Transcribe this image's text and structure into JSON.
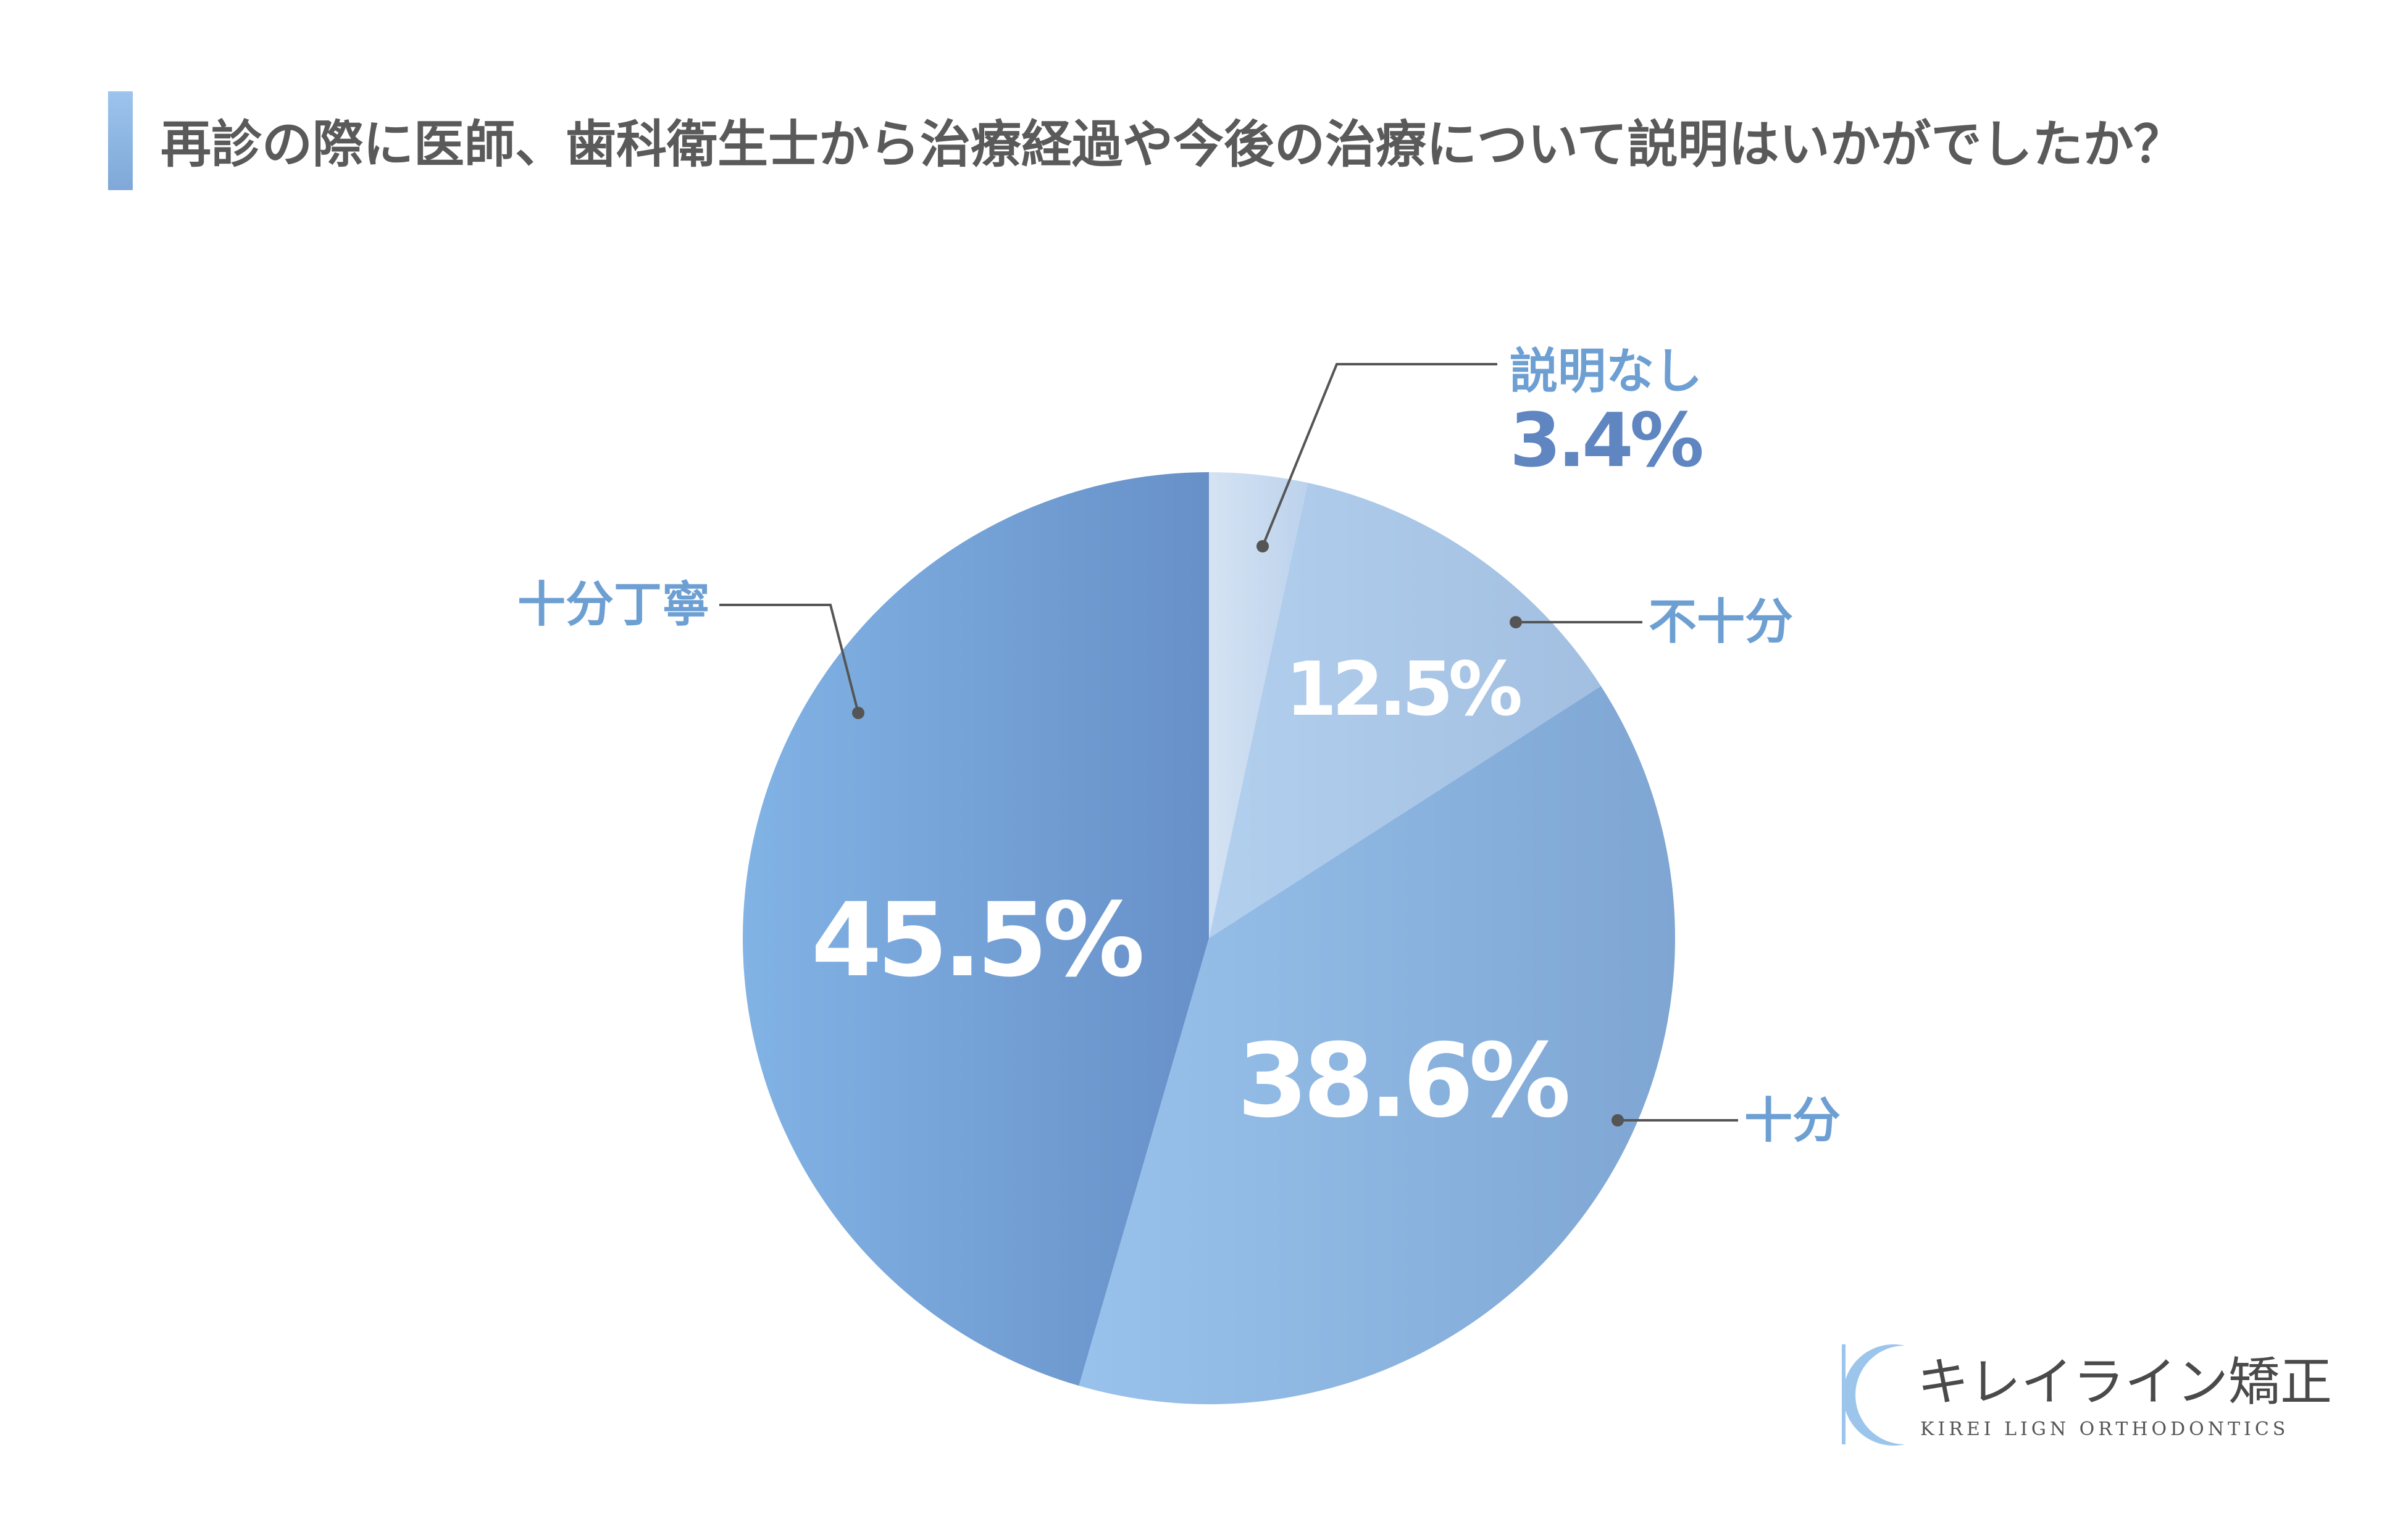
{
  "title": "再診の際に医師、歯科衛生士から治療経過や今後の治療について説明はいかがでしたか？",
  "accent_color": "#86b3e0",
  "chart_data": {
    "type": "pie",
    "title": "再診の際に医師、歯科衛生士から治療経過や今後の治療について説明はいかがでしたか？",
    "start_angle_deg": 0,
    "direction": "clockwise",
    "slices": [
      {
        "label": "説明なし",
        "value": 3.4,
        "value_label": "3.4%",
        "color_start": "#d5e3f3",
        "color_end": "#bcd2ec"
      },
      {
        "label": "不十分",
        "value": 12.5,
        "value_label": "12.5%",
        "color_start": "#b2cfee",
        "color_end": "#a2bfe1"
      },
      {
        "label": "十分",
        "value": 38.6,
        "value_label": "38.6%",
        "color_start": "#98c2ec",
        "color_end": "#7fa6d3"
      },
      {
        "label": "十分丁寧",
        "value": 45.5,
        "value_label": "45.5%",
        "color_start": "#82b3e5",
        "color_end": "#6790c8"
      }
    ],
    "legend": "none"
  },
  "brand": {
    "name": "キレイライン矯正",
    "subtitle": "KIREI LIGN ORTHODONTICS",
    "color": "#9cc5ec"
  }
}
